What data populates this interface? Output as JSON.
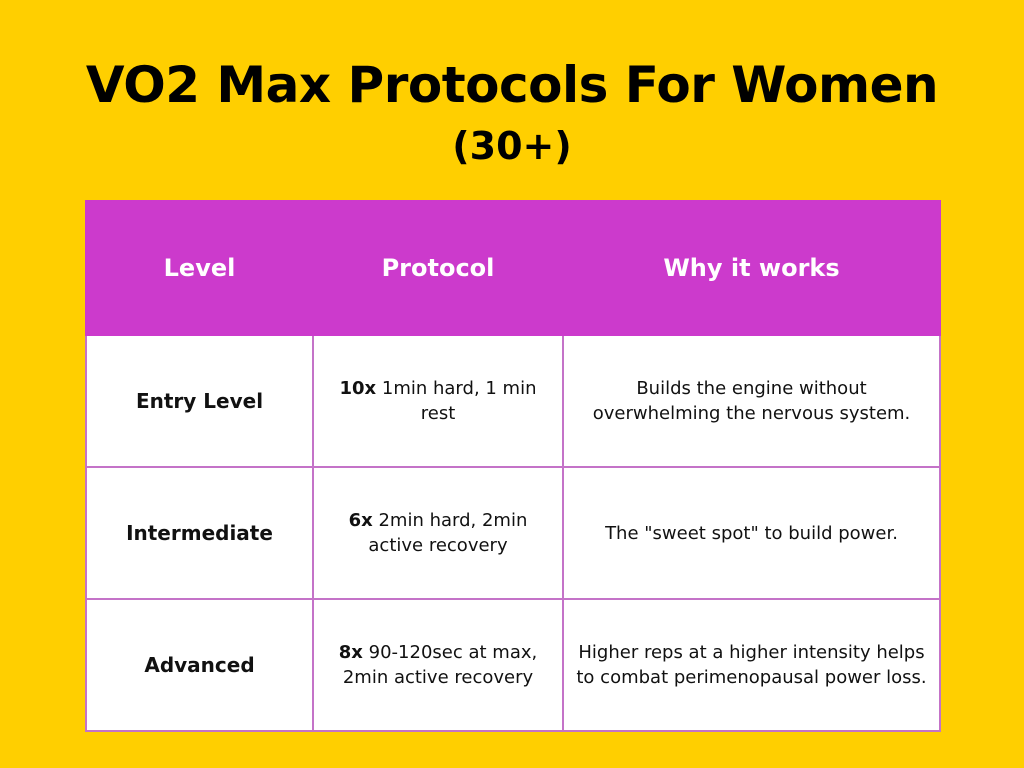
{
  "header": {
    "title": "VO2 Max Protocols For Women",
    "subtitle": "(30+)"
  },
  "table": {
    "columns": [
      "Level",
      "Protocol",
      "Why it works"
    ],
    "rows": [
      {
        "level": "Entry Level",
        "protocol_bold": "10x",
        "protocol_rest": " 1min hard, 1 min rest",
        "why": "Builds the engine without overwhelming the nervous system."
      },
      {
        "level": "Intermediate",
        "protocol_bold": "6x",
        "protocol_rest": " 2min hard, 2min active recovery",
        "why": "The \"sweet spot\" to build power."
      },
      {
        "level": "Advanced",
        "protocol_bold": "8x",
        "protocol_rest": " 90-120sec at max, 2min active recovery",
        "why": "Higher reps at a higher intensity helps to combat perimenopausal power loss."
      }
    ]
  },
  "colors": {
    "background": "#FFCF00",
    "header_fill": "#CC3ACC",
    "grid_line": "#C473C8",
    "text": "#000000",
    "header_text": "#FFFFFF"
  }
}
